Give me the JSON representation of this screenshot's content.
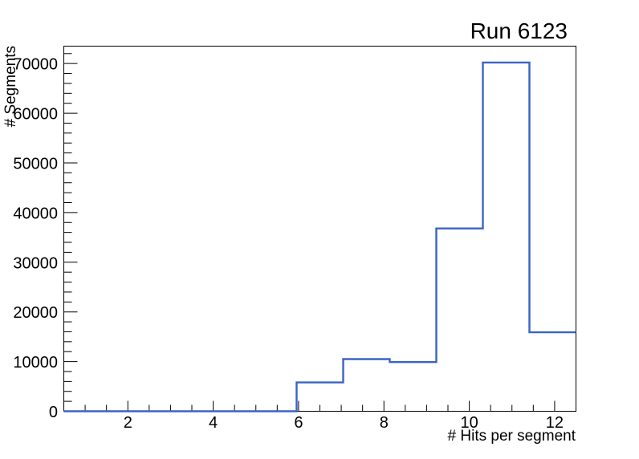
{
  "page": {
    "background_color": "#ffffff"
  },
  "chart_data": {
    "type": "bar",
    "style": "root-step-histogram-outline",
    "title": "Run 6123",
    "xlabel": "# Hits per segment",
    "ylabel": "# Segments",
    "xlim": [
      0.5,
      12.5
    ],
    "ylim": [
      0,
      73500
    ],
    "bin_edges": [
      0.5,
      1.5909,
      2.6818,
      3.7727,
      4.8636,
      5.9545,
      7.0455,
      8.1364,
      9.2273,
      10.3182,
      11.4091,
      12.5
    ],
    "counts": [
      0,
      0,
      0,
      0,
      0,
      5800,
      10500,
      9900,
      36800,
      70200,
      15900
    ],
    "x_major_ticks": [
      2,
      4,
      6,
      8,
      10,
      12
    ],
    "x_major_tick_labels": [
      "2",
      "4",
      "6",
      "8",
      "10",
      "12"
    ],
    "x_minor_tick_step": 0.5,
    "y_major_ticks": [
      0,
      10000,
      20000,
      30000,
      40000,
      50000,
      60000,
      70000
    ],
    "y_major_tick_labels": [
      "0",
      "10000",
      "20000",
      "30000",
      "40000",
      "50000",
      "60000",
      "70000"
    ],
    "y_minor_tick_step": 2000,
    "grid": false,
    "legend": null,
    "tick_direction": "in",
    "line_color": "#3a64c3",
    "axis_color": "#000000",
    "text_color": "#000000"
  }
}
